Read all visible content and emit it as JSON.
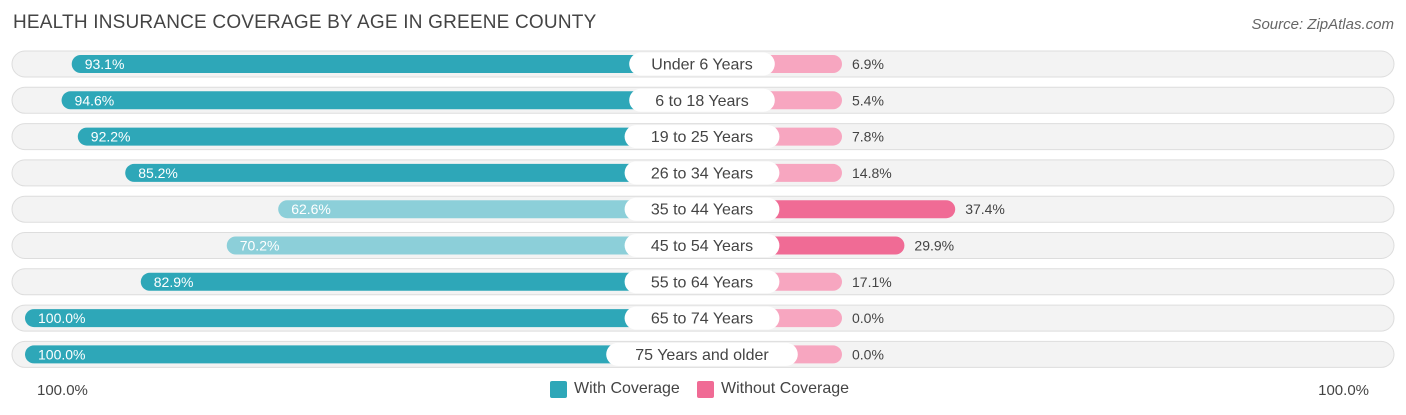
{
  "header": {
    "title": "HEALTH INSURANCE COVERAGE BY AGE IN GREENE COUNTY",
    "source": "Source: ZipAtlas.com"
  },
  "chart_data": {
    "type": "bar",
    "orientation": "horizontal-diverging",
    "title": "HEALTH INSURANCE COVERAGE BY AGE IN GREENE COUNTY",
    "categories": [
      "Under 6 Years",
      "6 to 18 Years",
      "19 to 25 Years",
      "26 to 34 Years",
      "35 to 44 Years",
      "45 to 54 Years",
      "55 to 64 Years",
      "65 to 74 Years",
      "75 Years and older"
    ],
    "series": [
      {
        "name": "With Coverage",
        "values": [
          93.1,
          94.6,
          92.2,
          85.2,
          62.6,
          70.2,
          82.9,
          100.0,
          100.0
        ],
        "labels": [
          "93.1%",
          "94.6%",
          "92.2%",
          "85.2%",
          "62.6%",
          "70.2%",
          "82.9%",
          "100.0%",
          "100.0%"
        ],
        "color_dark": "#2ea7b8",
        "color_light": "#8ccfd9"
      },
      {
        "name": "Without Coverage",
        "values": [
          6.9,
          5.4,
          7.8,
          14.8,
          37.4,
          29.9,
          17.1,
          0.0,
          0.0
        ],
        "labels": [
          "6.9%",
          "5.4%",
          "7.8%",
          "14.8%",
          "37.4%",
          "29.9%",
          "17.1%",
          "0.0%",
          "0.0%"
        ],
        "color_dark": "#f06b95",
        "color_light": "#f7a6c0"
      }
    ],
    "xlim": [
      0,
      100
    ],
    "axis_left_label": "100.0%",
    "axis_right_label": "100.0%",
    "legend_position": "bottom-center"
  },
  "legend": {
    "with_label": "With Coverage",
    "without_label": "Without Coverage",
    "with_color": "#2ea7b8",
    "without_color": "#f06b95"
  }
}
